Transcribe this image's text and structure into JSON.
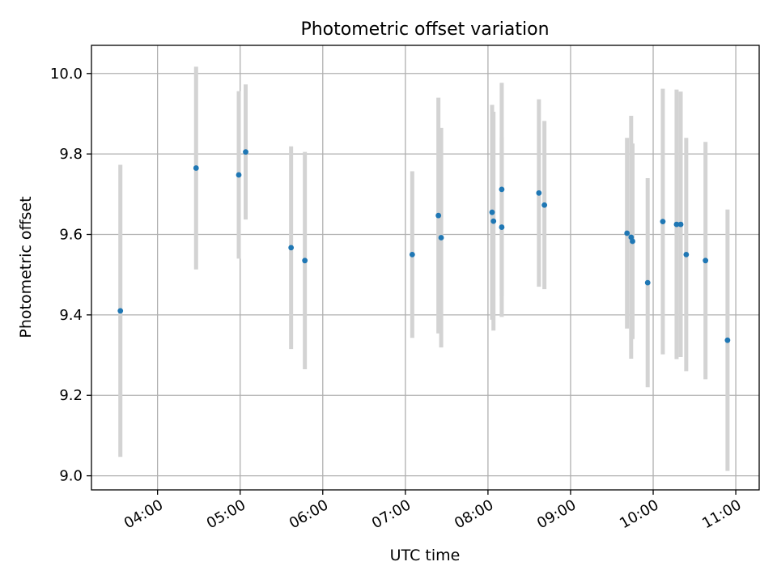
{
  "chart_data": {
    "type": "scatter",
    "title": "Photometric offset variation",
    "xlabel": "UTC time",
    "ylabel": "Photometric offset",
    "x_ticks": [
      "04:00",
      "05:00",
      "06:00",
      "07:00",
      "08:00",
      "09:00",
      "10:00",
      "11:00"
    ],
    "y_ticks": [
      "9.0",
      "9.2",
      "9.4",
      "9.6",
      "9.8",
      "10.0"
    ],
    "xlim": [
      "03:12",
      "11:17"
    ],
    "ylim": [
      8.965,
      10.07
    ],
    "grid": true,
    "colors": {
      "point": "#1f77b4",
      "errorbar": "#d3d3d3",
      "grid": "#b0b0b0"
    },
    "points": [
      {
        "x": "03:33",
        "y": 9.41,
        "yerr": 0.363
      },
      {
        "x": "04:28",
        "y": 9.765,
        "yerr": 0.252
      },
      {
        "x": "04:59",
        "y": 9.748,
        "yerr": 0.208
      },
      {
        "x": "05:04",
        "y": 9.805,
        "yerr": 0.168
      },
      {
        "x": "05:37",
        "y": 9.567,
        "yerr": 0.252
      },
      {
        "x": "05:47",
        "y": 9.535,
        "yerr": 0.27
      },
      {
        "x": "07:05",
        "y": 9.55,
        "yerr": 0.207
      },
      {
        "x": "07:24",
        "y": 9.647,
        "yerr": 0.293
      },
      {
        "x": "07:26",
        "y": 9.592,
        "yerr": 0.273
      },
      {
        "x": "08:03",
        "y": 9.655,
        "yerr": 0.267
      },
      {
        "x": "08:04",
        "y": 9.633,
        "yerr": 0.272
      },
      {
        "x": "08:10",
        "y": 9.618,
        "yerr": 0.223
      },
      {
        "x": "08:10",
        "y": 9.712,
        "yerr": 0.265
      },
      {
        "x": "08:37",
        "y": 9.703,
        "yerr": 0.233
      },
      {
        "x": "08:41",
        "y": 9.673,
        "yerr": 0.209
      },
      {
        "x": "09:41",
        "y": 9.603,
        "yerr": 0.237
      },
      {
        "x": "09:44",
        "y": 9.593,
        "yerr": 0.302
      },
      {
        "x": "09:45",
        "y": 9.583,
        "yerr": 0.243
      },
      {
        "x": "09:56",
        "y": 9.48,
        "yerr": 0.26
      },
      {
        "x": "10:07",
        "y": 9.632,
        "yerr": 0.33
      },
      {
        "x": "10:17",
        "y": 9.625,
        "yerr": 0.335
      },
      {
        "x": "10:20",
        "y": 9.625,
        "yerr": 0.33
      },
      {
        "x": "10:24",
        "y": 9.55,
        "yerr": 0.29
      },
      {
        "x": "10:38",
        "y": 9.535,
        "yerr": 0.295
      },
      {
        "x": "10:54",
        "y": 9.337,
        "yerr": 0.325
      }
    ]
  }
}
